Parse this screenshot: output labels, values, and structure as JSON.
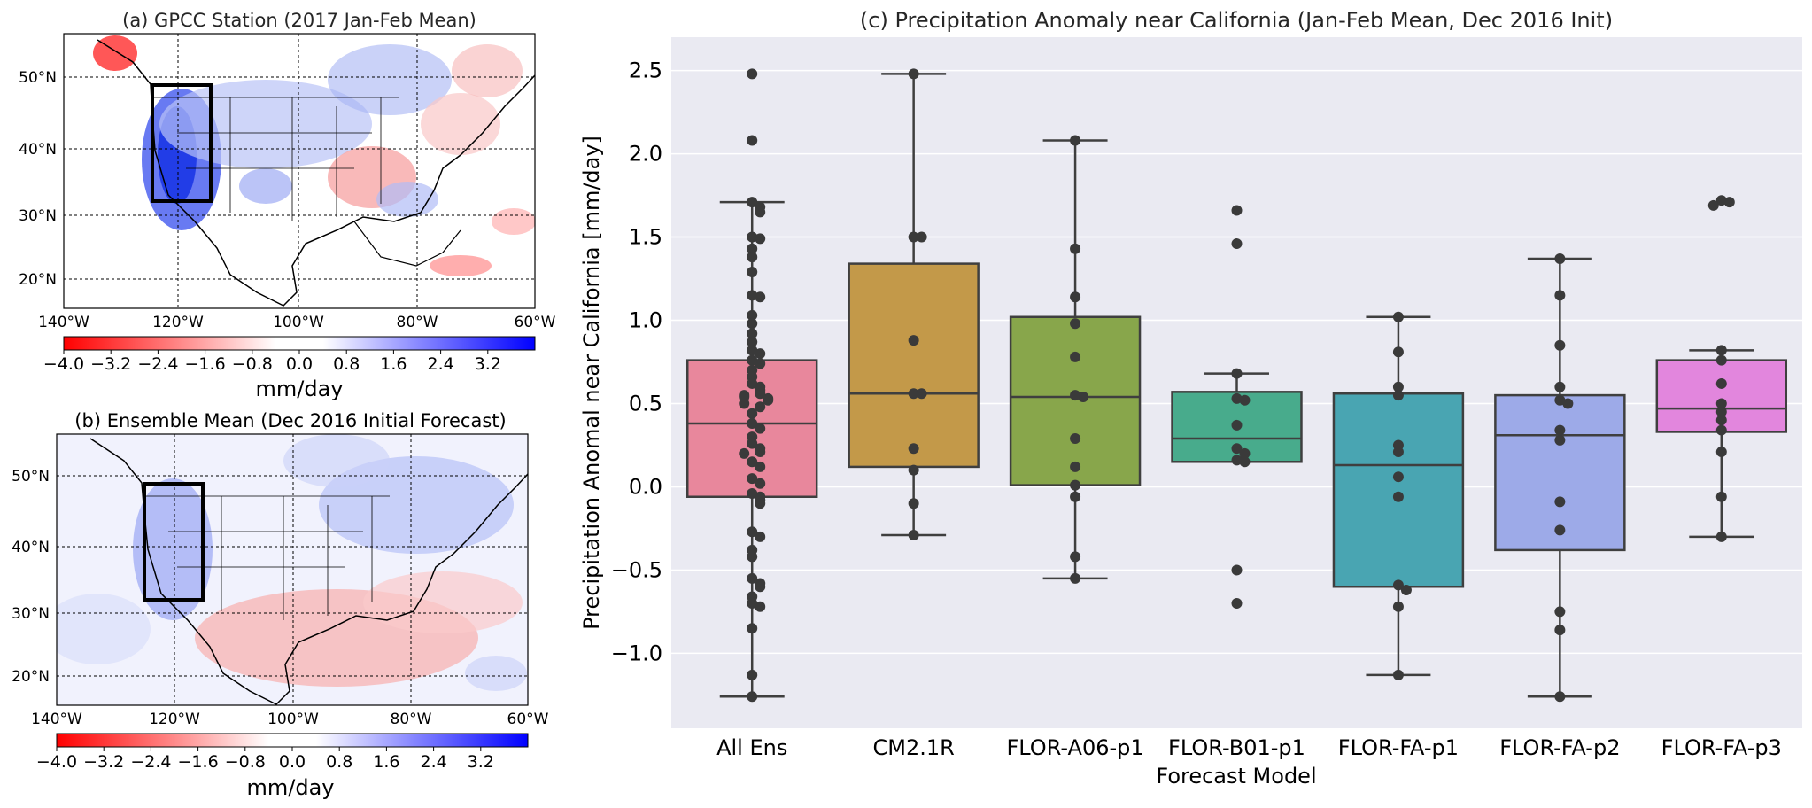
{
  "panel_a": {
    "title": "(a) GPCC Station (2017 Jan-Feb Mean)",
    "lat_labels": [
      "50°N",
      "40°N",
      "30°N",
      "20°N"
    ],
    "lon_labels": [
      "140°W",
      "120°W",
      "100°W",
      "80°W",
      "60°W"
    ],
    "colorbar_ticks": [
      "−4.0",
      "−3.2",
      "−2.4",
      "−1.6",
      "−0.8",
      "0.0",
      "0.8",
      "1.6",
      "2.4",
      "3.2"
    ],
    "colorbar_unit": "mm/day"
  },
  "panel_b": {
    "title": "(b) Ensemble Mean (Dec 2016 Initial Forecast)",
    "lat_labels": [
      "50°N",
      "40°N",
      "30°N",
      "20°N"
    ],
    "lon_labels": [
      "140°W",
      "120°W",
      "100°W",
      "80°W",
      "60°W"
    ],
    "colorbar_ticks": [
      "−4.0",
      "−3.2",
      "−2.4",
      "−1.6",
      "−0.8",
      "0.0",
      "0.8",
      "1.6",
      "2.4",
      "3.2"
    ],
    "colorbar_unit": "mm/day"
  },
  "colors": {
    "negative": "#ff0000",
    "positive": "#0000ff",
    "axes_bg": "#eaeaf2",
    "whisker": "#3f3f3f"
  },
  "chart_data": {
    "type": "box",
    "title": "(c) Precipitation Anomaly near California (Jan-Feb Mean, Dec 2016 Init)",
    "xlabel": "Forecast Model",
    "ylabel": "Precipitation Anomal near California [mm/day]",
    "ylim": [
      -1.45,
      2.7
    ],
    "yticks": [
      -1.0,
      -0.5,
      0.0,
      0.5,
      1.0,
      1.5,
      2.0,
      2.5
    ],
    "ytick_labels": [
      "−1.0",
      "−0.5",
      "0.0",
      "0.5",
      "1.0",
      "1.5",
      "2.0",
      "2.5"
    ],
    "grid": true,
    "categories": [
      "All Ens",
      "CM2.1R",
      "FLOR-A06-p1",
      "FLOR-B01-p1",
      "FLOR-FA-p1",
      "FLOR-FA-p2",
      "FLOR-FA-p3"
    ],
    "series": [
      {
        "color": "#e8879c",
        "q1": -0.06,
        "median": 0.38,
        "q3": 0.76,
        "whisker_low": -1.26,
        "whisker_high": 1.71,
        "points": [
          2.48,
          2.08,
          1.71,
          1.68,
          1.65,
          1.5,
          1.49,
          1.43,
          1.38,
          1.29,
          1.15,
          1.14,
          1.03,
          0.98,
          0.92,
          0.87,
          0.82,
          0.8,
          0.76,
          0.74,
          0.7,
          0.66,
          0.62,
          0.6,
          0.58,
          0.56,
          0.55,
          0.54,
          0.53,
          0.52,
          0.5,
          0.48,
          0.44,
          0.38,
          0.35,
          0.3,
          0.26,
          0.23,
          0.21,
          0.2,
          0.15,
          0.12,
          0.05,
          0.02,
          -0.04,
          -0.06,
          -0.08,
          -0.1,
          -0.27,
          -0.3,
          -0.38,
          -0.42,
          -0.55,
          -0.58,
          -0.6,
          -0.66,
          -0.7,
          -0.72,
          -0.85,
          -1.13,
          -1.26
        ]
      },
      {
        "color": "#c39949",
        "q1": 0.12,
        "median": 0.56,
        "q3": 1.34,
        "whisker_low": -0.29,
        "whisker_high": 2.48,
        "points": [
          2.48,
          1.5,
          1.5,
          0.88,
          0.56,
          0.56,
          0.23,
          0.1,
          -0.1,
          -0.29
        ]
      },
      {
        "color": "#88a64b",
        "q1": 0.01,
        "median": 0.54,
        "q3": 1.02,
        "whisker_low": -0.55,
        "whisker_high": 2.08,
        "points": [
          2.08,
          1.43,
          1.14,
          0.98,
          0.78,
          0.55,
          0.54,
          0.29,
          0.12,
          0.01,
          -0.06,
          -0.42,
          -0.55
        ]
      },
      {
        "color": "#48ab8c",
        "q1": 0.15,
        "median": 0.29,
        "q3": 0.57,
        "whisker_low": 0.15,
        "whisker_high": 0.68,
        "points": [
          1.66,
          1.46,
          0.68,
          0.53,
          0.52,
          0.37,
          0.23,
          0.2,
          0.16,
          0.15,
          -0.5,
          -0.7
        ]
      },
      {
        "color": "#49a5b2",
        "q1": -0.6,
        "median": 0.13,
        "q3": 0.56,
        "whisker_low": -1.13,
        "whisker_high": 1.02,
        "points": [
          1.02,
          0.81,
          0.6,
          0.55,
          0.25,
          0.21,
          0.06,
          -0.06,
          -0.59,
          -0.62,
          -0.72,
          -1.13
        ]
      },
      {
        "color": "#9daae8",
        "q1": -0.38,
        "median": 0.31,
        "q3": 0.55,
        "whisker_low": -1.26,
        "whisker_high": 1.37,
        "points": [
          1.37,
          1.15,
          0.85,
          0.6,
          0.52,
          0.5,
          0.34,
          0.28,
          -0.09,
          -0.26,
          -0.75,
          -0.86,
          -1.26
        ]
      },
      {
        "color": "#e286dd",
        "q1": 0.33,
        "median": 0.47,
        "q3": 0.76,
        "whisker_low": -0.3,
        "whisker_high": 0.82,
        "points": [
          1.72,
          1.71,
          1.69,
          0.82,
          0.76,
          0.62,
          0.5,
          0.45,
          0.4,
          0.34,
          0.21,
          -0.06,
          -0.3
        ]
      }
    ]
  }
}
